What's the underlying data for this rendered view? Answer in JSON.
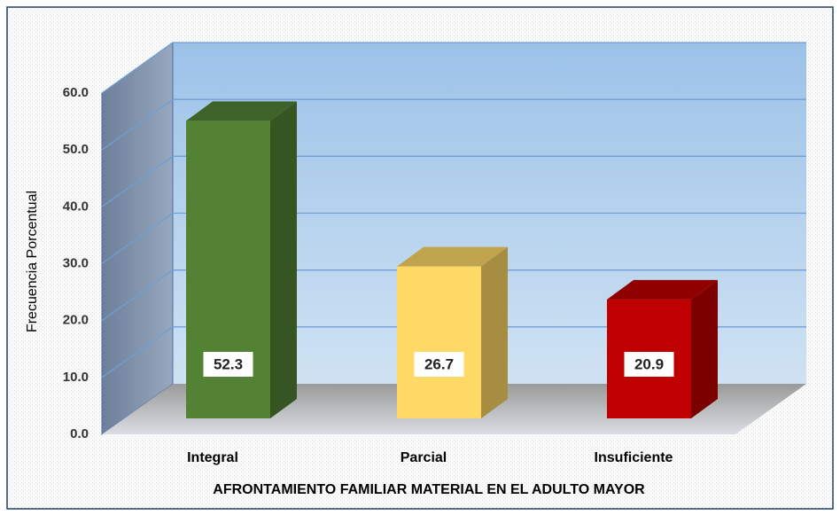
{
  "chart_data": {
    "type": "bar3d",
    "xlabel": "AFRONTAMIENTO FAMILIAR MATERIAL EN EL ADULTO MAYOR",
    "ylabel": "Frecuencia Porcentual",
    "categories": [
      "Integral",
      "Parcial",
      "Insuficiente"
    ],
    "values": [
      52.3,
      26.7,
      20.9
    ],
    "colors": [
      "#548235",
      "#ffd966",
      "#c00000"
    ],
    "ylim": [
      0,
      60
    ],
    "yticks": [
      {
        "value": 0,
        "label": "0.0"
      },
      {
        "value": 10,
        "label": "10.0"
      },
      {
        "value": 20,
        "label": "20.0"
      },
      {
        "value": 30,
        "label": "30.0"
      },
      {
        "value": 40,
        "label": "40.0"
      },
      {
        "value": 50,
        "label": "50.0"
      },
      {
        "value": 60,
        "label": "60.0"
      }
    ],
    "grid": true
  }
}
